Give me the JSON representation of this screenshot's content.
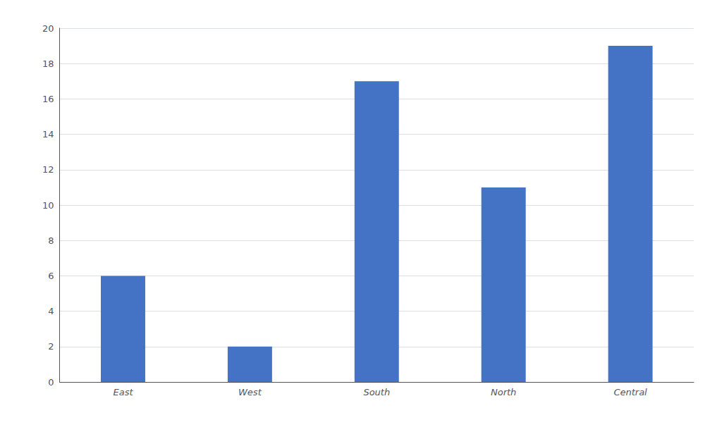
{
  "chart_data": {
    "type": "bar",
    "categories": [
      "East",
      "West",
      "South",
      "North",
      "Central"
    ],
    "values": [
      6,
      2,
      17,
      11,
      19
    ],
    "color": "#4472C4",
    "ylim": [
      0,
      20
    ],
    "yticks": [
      0,
      2,
      4,
      6,
      8,
      10,
      12,
      14,
      16,
      18,
      20
    ],
    "grid": true
  }
}
